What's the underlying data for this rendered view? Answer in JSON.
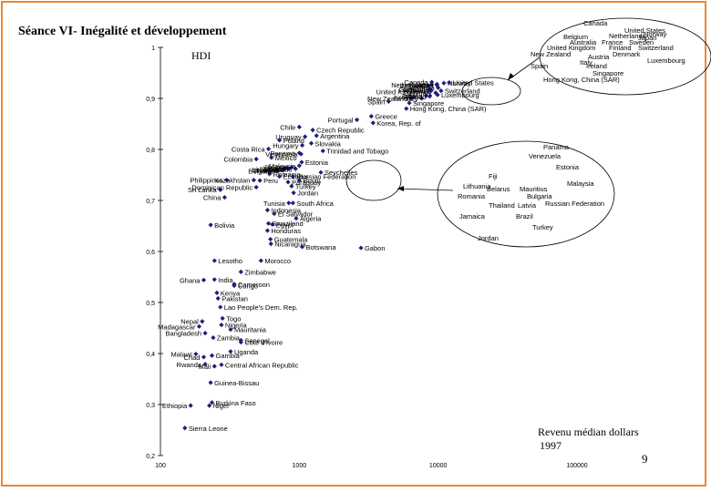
{
  "slide": {
    "title": "Séance VI- Inégalité et développement",
    "page_number": "9"
  },
  "colors": {
    "marker": "#1f1f7a",
    "frame": "#e8883a",
    "axis": "#000000"
  },
  "chart_data": {
    "type": "scatter",
    "title": "Séance VI- Inégalité et développement",
    "ylabel": "HDI",
    "xlabel": "Revenu médian dollars",
    "xlabel_year": "1997",
    "x_scale": "log",
    "xlim": [
      100,
      100000
    ],
    "ylim": [
      0.2,
      1.0
    ],
    "x_ticks": [
      100,
      1000,
      10000,
      100000
    ],
    "x_tick_labels": [
      "100",
      "1000",
      "10000",
      "100000"
    ],
    "y_ticks": [
      0.2,
      0.3,
      0.4,
      0.5,
      0.6,
      0.7,
      0.8,
      0.9,
      1.0
    ],
    "y_tick_labels": [
      "0,2",
      "0,3",
      "0,4",
      "0,5",
      "0,6",
      "0,7",
      "0,8",
      "0,9",
      "1"
    ],
    "points": [
      {
        "label": "Sierra Leone",
        "x": 150,
        "y": 0.254
      },
      {
        "label": "Ethiopia",
        "x": 165,
        "y": 0.298
      },
      {
        "label": "Niger",
        "x": 225,
        "y": 0.298
      },
      {
        "label": "Burkina Faso",
        "x": 235,
        "y": 0.304
      },
      {
        "label": "Guinea-Bissau",
        "x": 230,
        "y": 0.343
      },
      {
        "label": "Chad",
        "x": 205,
        "y": 0.393
      },
      {
        "label": "Gambia",
        "x": 235,
        "y": 0.396
      },
      {
        "label": "Mali",
        "x": 245,
        "y": 0.375
      },
      {
        "label": "Central African Republic",
        "x": 275,
        "y": 0.378
      },
      {
        "label": "Rwanda",
        "x": 210,
        "y": 0.379
      },
      {
        "label": "Malawi",
        "x": 180,
        "y": 0.399
      },
      {
        "label": "Uganda",
        "x": 320,
        "y": 0.404
      },
      {
        "label": "Bangladesh",
        "x": 210,
        "y": 0.44
      },
      {
        "label": "Zambia",
        "x": 240,
        "y": 0.431
      },
      {
        "label": "Cote d'Ivoire",
        "x": 380,
        "y": 0.422
      },
      {
        "label": "Senegal",
        "x": 380,
        "y": 0.426
      },
      {
        "label": "Mauritania",
        "x": 320,
        "y": 0.447
      },
      {
        "label": "Nigeria",
        "x": 275,
        "y": 0.456
      },
      {
        "label": "Togo",
        "x": 280,
        "y": 0.469
      },
      {
        "label": "Madagascar",
        "x": 190,
        "y": 0.453
      },
      {
        "label": "Nepal",
        "x": 200,
        "y": 0.463
      },
      {
        "label": "Lao People's Dem. Rep.",
        "x": 270,
        "y": 0.491
      },
      {
        "label": "Pakistan",
        "x": 260,
        "y": 0.508
      },
      {
        "label": "Kenya",
        "x": 255,
        "y": 0.519
      },
      {
        "label": "Congo",
        "x": 340,
        "y": 0.533
      },
      {
        "label": "Ghana",
        "x": 205,
        "y": 0.544
      },
      {
        "label": "India",
        "x": 245,
        "y": 0.545
      },
      {
        "label": "Cameroon",
        "x": 340,
        "y": 0.536
      },
      {
        "label": "Zimbabwe",
        "x": 380,
        "y": 0.56
      },
      {
        "label": "Lesotho",
        "x": 245,
        "y": 0.582
      },
      {
        "label": "Morocco",
        "x": 530,
        "y": 0.582
      },
      {
        "label": "Nicaragua",
        "x": 625,
        "y": 0.615
      },
      {
        "label": "Botswana",
        "x": 1050,
        "y": 0.609
      },
      {
        "label": "Gabon",
        "x": 2780,
        "y": 0.607
      },
      {
        "label": "Guatemala",
        "x": 620,
        "y": 0.624
      },
      {
        "label": "Honduras",
        "x": 590,
        "y": 0.641
      },
      {
        "label": "Egypt",
        "x": 640,
        "y": 0.653
      },
      {
        "label": "Swaziland",
        "x": 600,
        "y": 0.655
      },
      {
        "label": "Bolivia",
        "x": 230,
        "y": 0.652
      },
      {
        "label": "El Salvador",
        "x": 660,
        "y": 0.674
      },
      {
        "label": "Algeria",
        "x": 950,
        "y": 0.665
      },
      {
        "label": "Indonesia",
        "x": 590,
        "y": 0.681
      },
      {
        "label": "Tunisia",
        "x": 840,
        "y": 0.695
      },
      {
        "label": "South Africa",
        "x": 900,
        "y": 0.695
      },
      {
        "label": "China",
        "x": 290,
        "y": 0.706
      },
      {
        "label": "Sri Lanka",
        "x": 270,
        "y": 0.721
      },
      {
        "label": "Dominican Republic",
        "x": 490,
        "y": 0.726
      },
      {
        "label": "Jordan",
        "x": 910,
        "y": 0.715
      },
      {
        "label": "Turkey",
        "x": 880,
        "y": 0.728
      },
      {
        "label": "Paraguay",
        "x": 830,
        "y": 0.736
      },
      {
        "label": "Brazil",
        "x": 1000,
        "y": 0.739
      },
      {
        "label": "Philippines",
        "x": 300,
        "y": 0.74
      },
      {
        "label": "Peru",
        "x": 520,
        "y": 0.739
      },
      {
        "label": "Kazakhstan",
        "x": 470,
        "y": 0.74
      },
      {
        "label": "Romania",
        "x": 610,
        "y": 0.752
      },
      {
        "label": "Ecuador",
        "x": 720,
        "y": 0.747
      },
      {
        "label": "Lithuania",
        "x": 770,
        "y": 0.761
      },
      {
        "label": "Bulgaria",
        "x": 690,
        "y": 0.758
      },
      {
        "label": "Russian Federation",
        "x": 900,
        "y": 0.747
      },
      {
        "label": "Seychelles",
        "x": 1430,
        "y": 0.755
      },
      {
        "label": "Fiji",
        "x": 820,
        "y": 0.763
      },
      {
        "label": "Thailand",
        "x": 760,
        "y": 0.759
      },
      {
        "label": "Latvia",
        "x": 790,
        "y": 0.763
      },
      {
        "label": "Jamaica",
        "x": 840,
        "y": 0.762
      },
      {
        "label": "Belarus",
        "x": 880,
        "y": 0.765
      },
      {
        "label": "Mauritius",
        "x": 940,
        "y": 0.762
      },
      {
        "label": "Malaysia",
        "x": 1000,
        "y": 0.768
      },
      {
        "label": "Estonia",
        "x": 1040,
        "y": 0.775
      },
      {
        "label": "Colombia",
        "x": 490,
        "y": 0.781
      },
      {
        "label": "Mexico",
        "x": 630,
        "y": 0.784
      },
      {
        "label": "Panama",
        "x": 1000,
        "y": 0.793
      },
      {
        "label": "Venezuela",
        "x": 1030,
        "y": 0.791
      },
      {
        "label": "Trinidad and Tobago",
        "x": 1480,
        "y": 0.797
      },
      {
        "label": "Costa Rica",
        "x": 600,
        "y": 0.801
      },
      {
        "label": "Hungary",
        "x": 1050,
        "y": 0.808
      },
      {
        "label": "Slovakia",
        "x": 1220,
        "y": 0.812
      },
      {
        "label": "Poland",
        "x": 720,
        "y": 0.818
      },
      {
        "label": "Uruguay",
        "x": 1100,
        "y": 0.825
      },
      {
        "label": "Argentina",
        "x": 1330,
        "y": 0.827
      },
      {
        "label": "Chile",
        "x": 1000,
        "y": 0.844
      },
      {
        "label": "Czech Republic",
        "x": 1250,
        "y": 0.838
      },
      {
        "label": "Portugal",
        "x": 2600,
        "y": 0.858
      },
      {
        "label": "Korea, Rep. of",
        "x": 3400,
        "y": 0.852
      },
      {
        "label": "Greece",
        "x": 3300,
        "y": 0.865
      },
      {
        "label": "Spain",
        "x": 4400,
        "y": 0.894
      },
      {
        "label": "Singapore",
        "x": 6200,
        "y": 0.891
      },
      {
        "label": "Hong Kong, China (SAR)",
        "x": 5900,
        "y": 0.88
      },
      {
        "label": "New Zealand",
        "x": 6400,
        "y": 0.9
      },
      {
        "label": "Israel",
        "x": 6700,
        "y": 0.903
      },
      {
        "label": "Italy",
        "x": 7600,
        "y": 0.9
      },
      {
        "label": "Austria",
        "x": 8200,
        "y": 0.905
      },
      {
        "label": "Ireland",
        "x": 8700,
        "y": 0.904
      },
      {
        "label": "Luxembourg",
        "x": 9900,
        "y": 0.907
      },
      {
        "label": "Denmark",
        "x": 9600,
        "y": 0.911
      },
      {
        "label": "United Kingdom",
        "x": 8500,
        "y": 0.913
      },
      {
        "label": "France",
        "x": 8900,
        "y": 0.915
      },
      {
        "label": "Switzerland",
        "x": 10500,
        "y": 0.915
      },
      {
        "label": "Finland",
        "x": 8600,
        "y": 0.917
      },
      {
        "label": "Germany",
        "x": 8800,
        "y": 0.918
      },
      {
        "label": "Australia",
        "x": 10000,
        "y": 0.921
      },
      {
        "label": "Belgium",
        "x": 8500,
        "y": 0.925
      },
      {
        "label": "Netherlands",
        "x": 9000,
        "y": 0.927
      },
      {
        "label": "Japan",
        "x": 9800,
        "y": 0.928
      },
      {
        "label": "Sweden",
        "x": 9800,
        "y": 0.926
      },
      {
        "label": "Norway",
        "x": 11000,
        "y": 0.93
      },
      {
        "label": "United States",
        "x": 12000,
        "y": 0.931
      },
      {
        "label": "Canada",
        "x": 9000,
        "y": 0.932
      }
    ],
    "callout_top": [
      "Canada",
      "United States",
      "Belgium",
      "Netherlands",
      "Japan",
      "Norway",
      "Australia",
      "France",
      "Sweden",
      "United Kingdom",
      "Finland",
      "Switzerland",
      "New Zealand",
      "Denmark",
      "Austria",
      "Luxembourg",
      "Italy",
      "Spain",
      "Ireland",
      "Singapore",
      "Hong Kong, China (SAR)"
    ],
    "callout_mid": [
      "Panama",
      "Venezuela",
      "Estonia",
      "Fiji",
      "Malaysia",
      "Lithuania",
      "Belarus",
      "Mauritius",
      "Romania",
      "Bulgaria",
      "Thailand",
      "Latvia",
      "Russian Federation",
      "Jamaica",
      "Brazil",
      "Turkey",
      "Jordan"
    ]
  }
}
